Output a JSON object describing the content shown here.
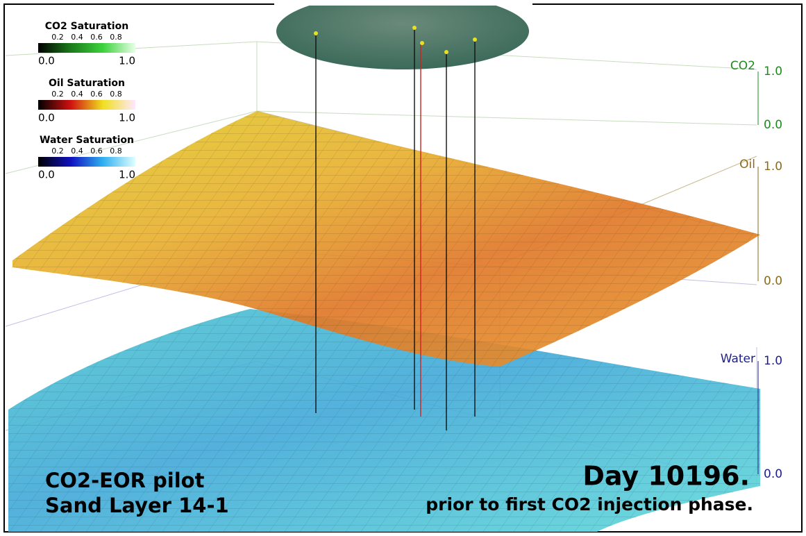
{
  "colorbars": [
    {
      "title": "CO2 Saturation",
      "labels": [
        "0.2",
        "0.4",
        "0.6",
        "0.8"
      ],
      "min": "0.0",
      "max": "1.0",
      "colors": [
        "#000000",
        "#1a7a1a",
        "#3cd23c",
        "#e8ffe8"
      ]
    },
    {
      "title": "Oil Saturation",
      "labels": [
        "0.2",
        "0.4",
        "0.6",
        "0.8"
      ],
      "min": "0.0",
      "max": "1.0",
      "colors": [
        "#000000",
        "#d01010",
        "#f0e020",
        "#ffe8ff"
      ]
    },
    {
      "title": "Water Saturation",
      "labels": [
        "0.2",
        "0.4",
        "0.6",
        "0.8"
      ],
      "min": "0.0",
      "max": "1.0",
      "colors": [
        "#000000",
        "#1010c0",
        "#30b0f0",
        "#e0ffff"
      ]
    }
  ],
  "axes": [
    {
      "name": "CO2",
      "top": "1.0",
      "bottom": "0.0",
      "color": "#1e8a1e"
    },
    {
      "name": "Oil",
      "top": "1.0",
      "bottom": "0.0",
      "color": "#8a6a1e"
    },
    {
      "name": "Water",
      "top": "1.0",
      "bottom": "0.0",
      "color": "#1e1e8a"
    }
  ],
  "caption": {
    "line1": "CO2-EOR pilot",
    "line2": "Sand Layer 14-1"
  },
  "status": {
    "day": "Day 10196.",
    "note": "prior to first CO2 injection phase."
  }
}
